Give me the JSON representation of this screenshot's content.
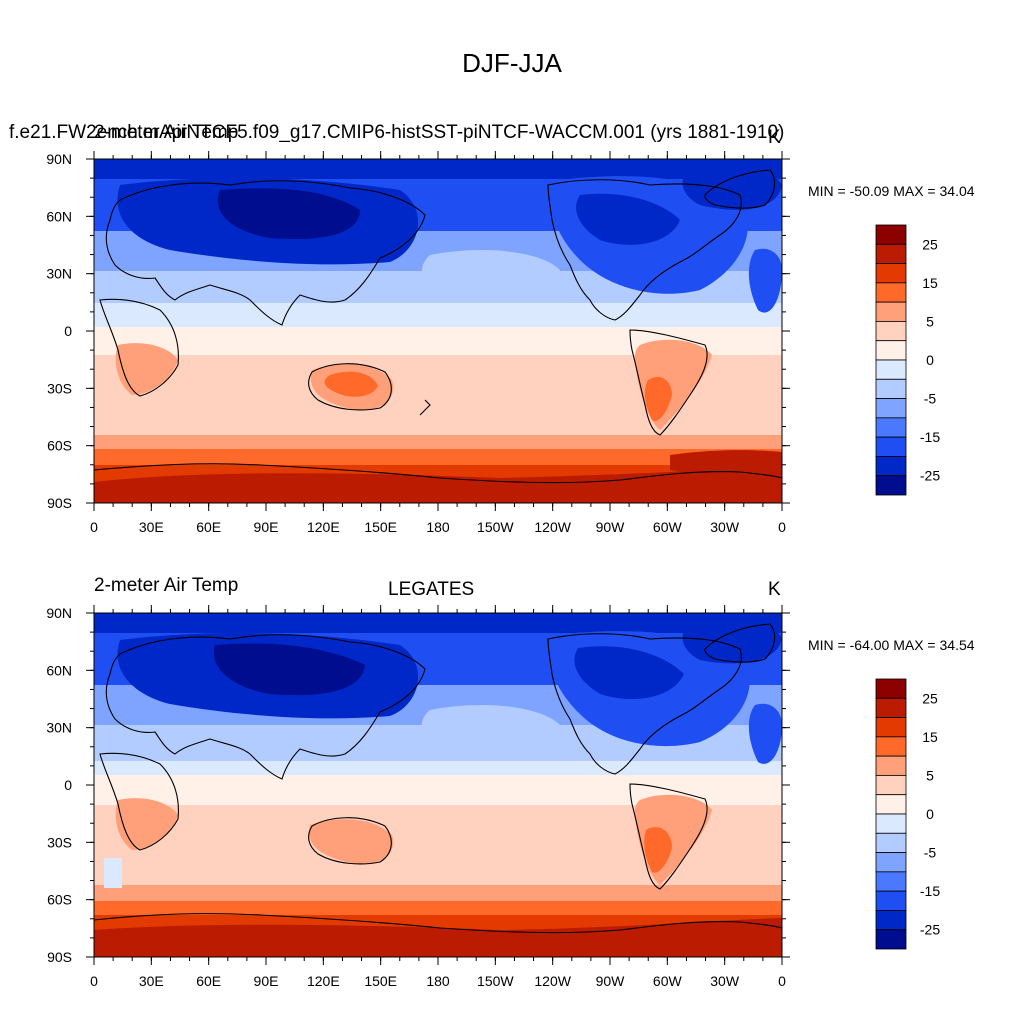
{
  "figure": {
    "title": "DJF-JJA"
  },
  "panels": [
    {
      "left_title": "f.e21.FW2ench.mApiNTCF5.f09_g17.CMIP6-histSST-piNTCF-WACCM.001 (yrs 1881-1910)",
      "left_title_overlay": "2-meter Air Temp",
      "center_title": "",
      "units": "K",
      "stats": "MIN = -50.09 MAX =  34.04"
    },
    {
      "left_title": "2-meter Air Temp",
      "center_title": "LEGATES",
      "units": "K",
      "stats": "MIN = -64.00 MAX =  34.54"
    }
  ],
  "axes": {
    "lon_ticks": [
      "0",
      "30E",
      "60E",
      "90E",
      "120E",
      "150E",
      "180",
      "150W",
      "120W",
      "90W",
      "60W",
      "30W",
      "0"
    ],
    "lat_ticks": [
      "90N",
      "60N",
      "30N",
      "0",
      "30S",
      "60S",
      "90S"
    ]
  },
  "colorbar": {
    "labels": [
      "25",
      "15",
      "5",
      "0",
      "-5",
      "-15",
      "-25"
    ],
    "colors": [
      "#8c0000",
      "#bb1b00",
      "#e23a00",
      "#ff6a2a",
      "#ffa07a",
      "#ffd2bf",
      "#fff0e8",
      "#dbe9ff",
      "#b2ccff",
      "#7fa4ff",
      "#4a79ff",
      "#1f4ff2",
      "#0028c8",
      "#000d8f"
    ]
  }
}
